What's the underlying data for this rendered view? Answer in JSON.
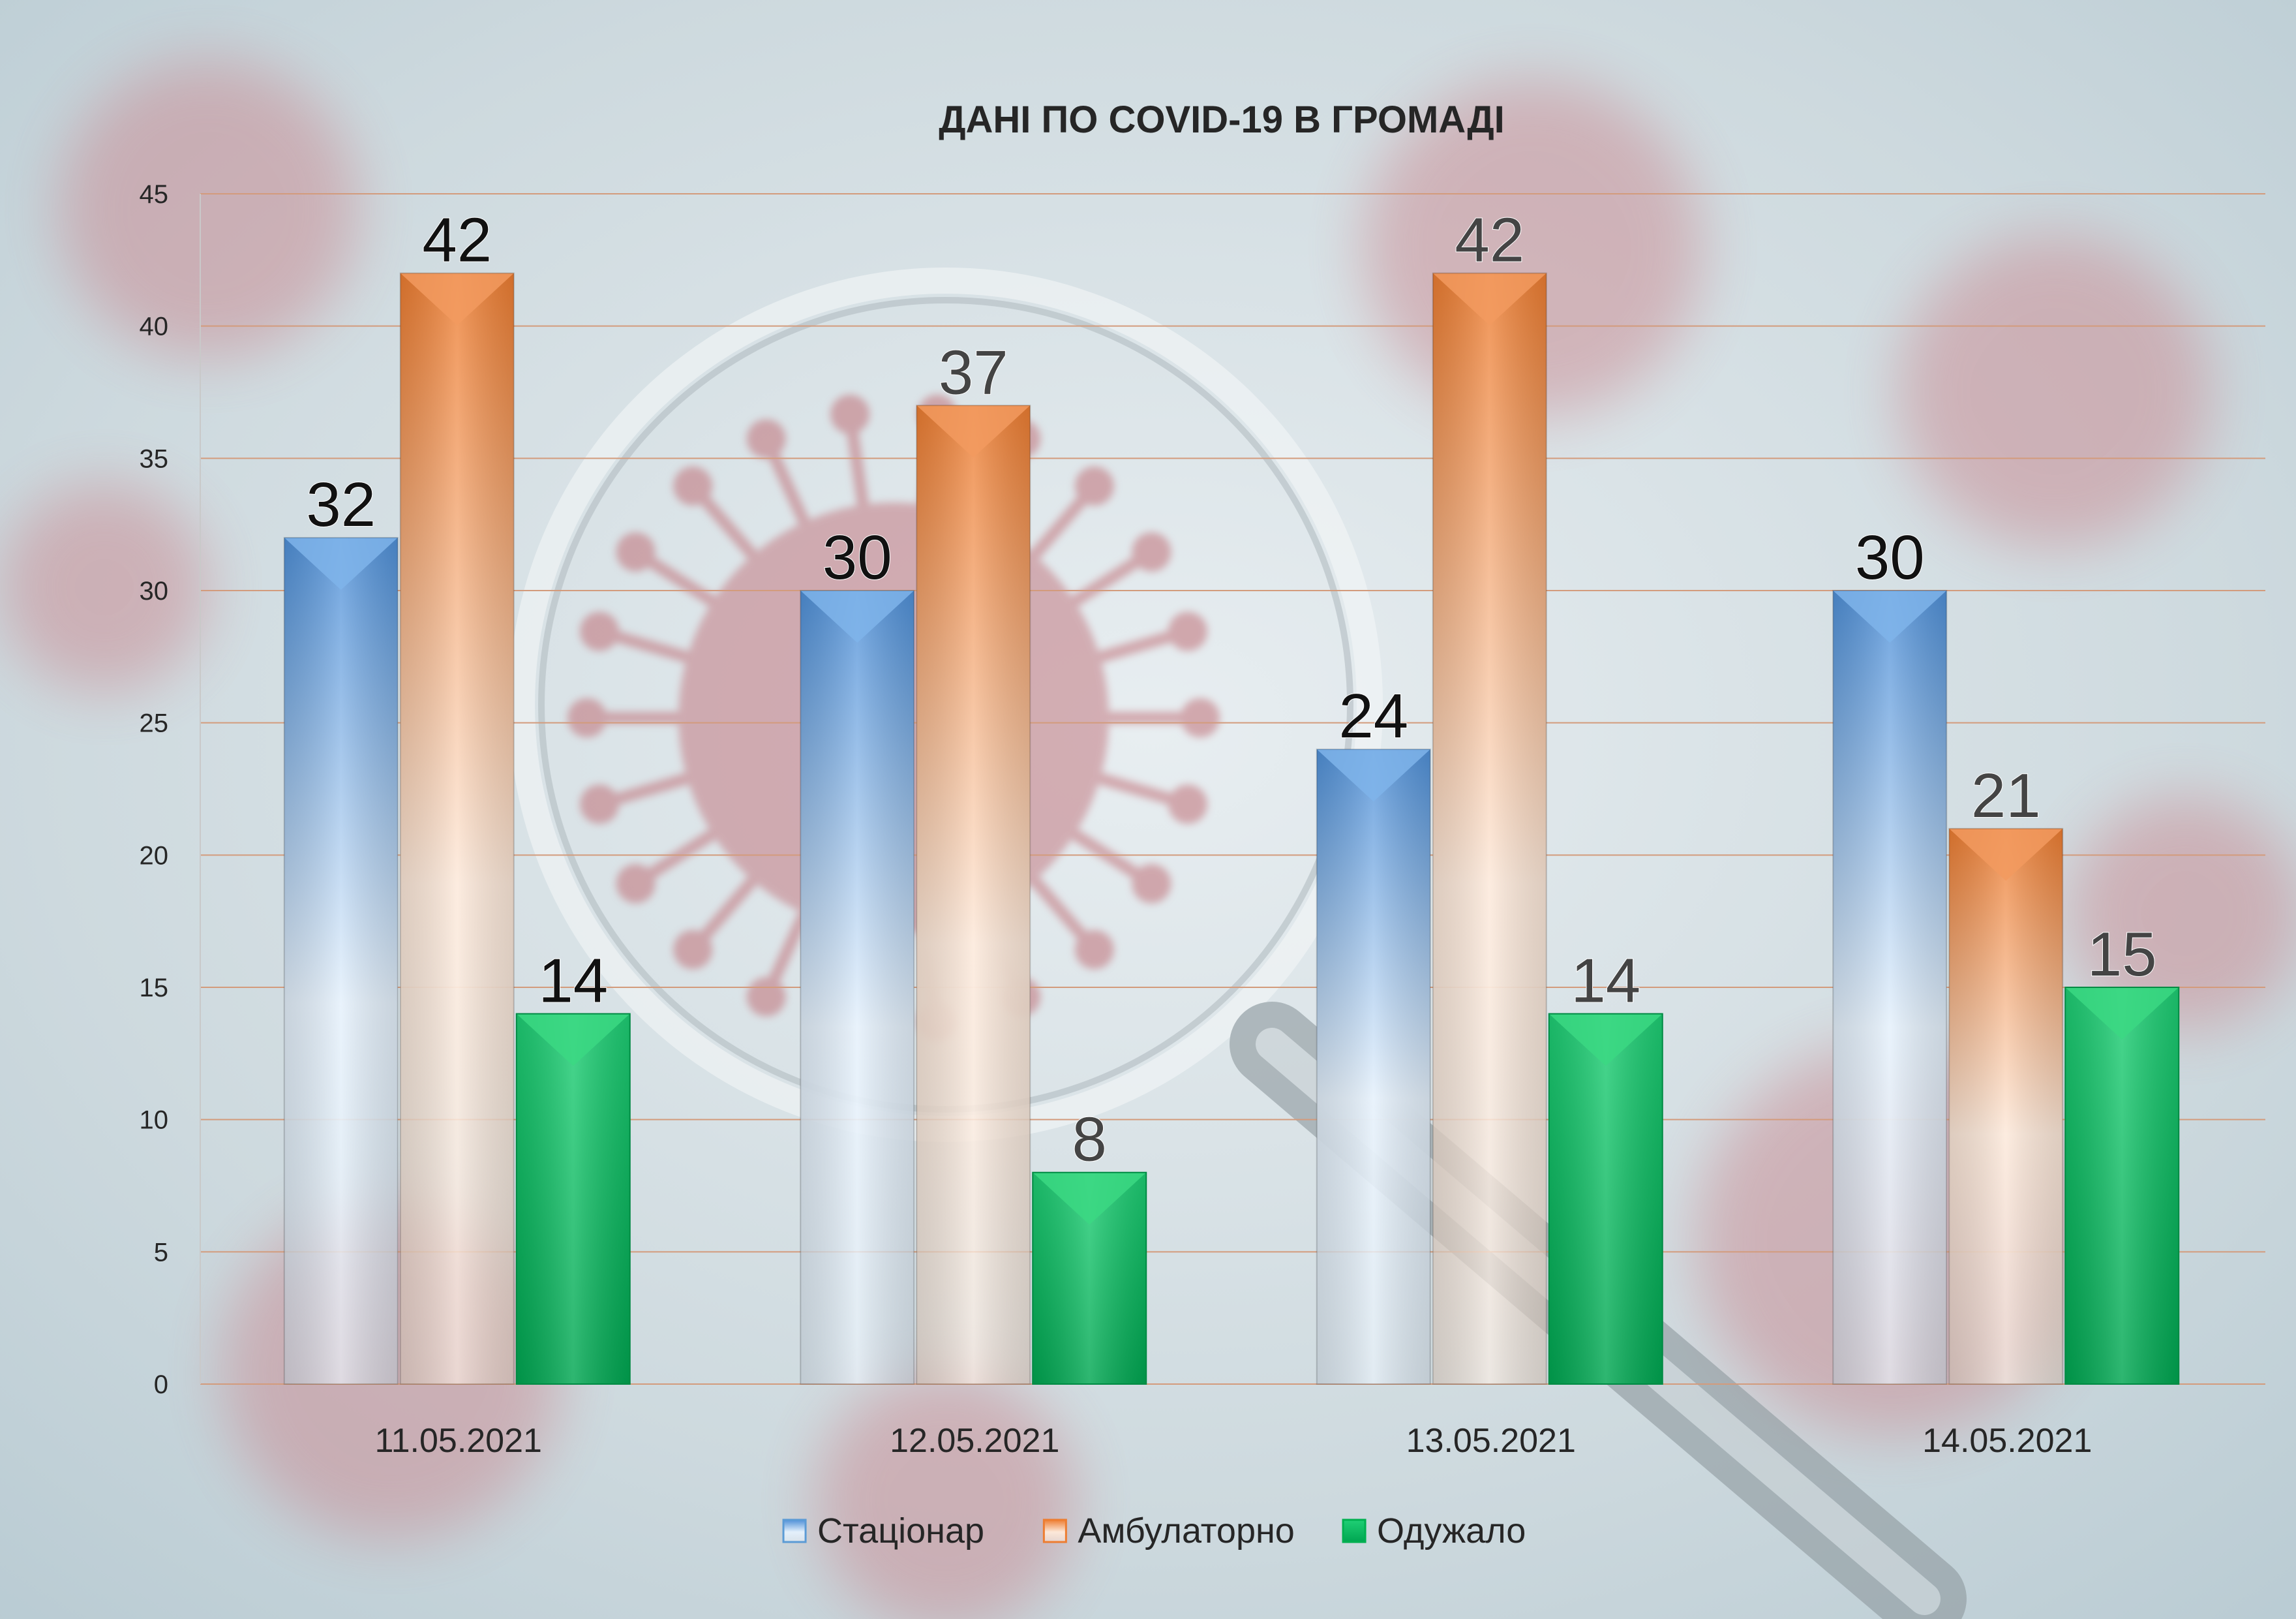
{
  "chart_data": {
    "type": "bar",
    "title": "ДАНІ ПО COVID-19 В ГРОМАДІ",
    "xlabel": "",
    "ylabel": "",
    "categories": [
      "11.05.2021",
      "12.05.2021",
      "13.05.2021",
      "14.05.2021"
    ],
    "series": [
      {
        "name": "Стаціонар",
        "values": [
          32,
          30,
          24,
          30
        ],
        "color": "#5b9bd5"
      },
      {
        "name": "Амбулаторно",
        "values": [
          42,
          37,
          42,
          21
        ],
        "color": "#ed7d31"
      },
      {
        "name": "Одужало",
        "values": [
          14,
          8,
          14,
          15
        ],
        "color": "#00b050"
      }
    ],
    "ylim": [
      0,
      45
    ],
    "yticks": [
      0,
      5,
      10,
      15,
      20,
      25,
      30,
      35,
      40,
      45
    ],
    "grid": true,
    "legend_position": "bottom",
    "background_colors": {
      "light": "#e8eef1",
      "mid": "#b9cbd3",
      "virus": "#c97f86"
    }
  }
}
